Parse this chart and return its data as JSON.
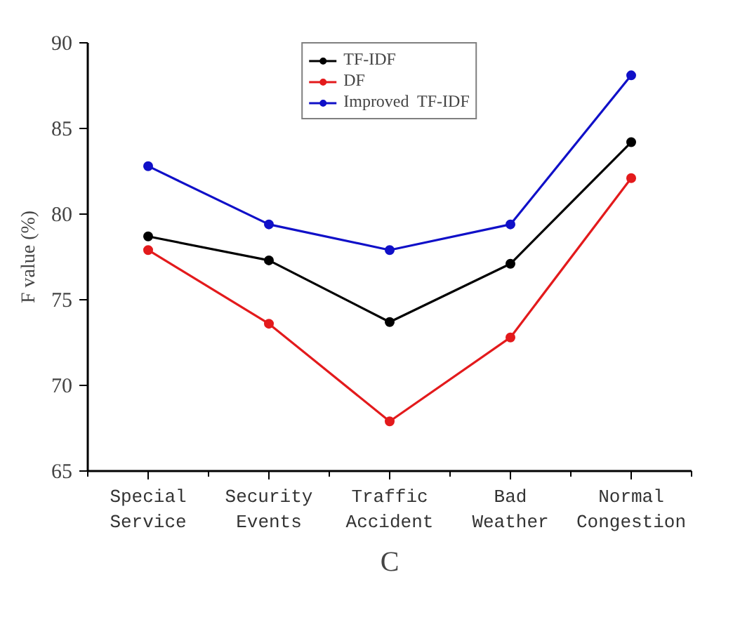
{
  "chart_data": {
    "type": "line",
    "ylabel": "F value (%)",
    "annotations": [
      "C"
    ],
    "categories": [
      "Special\nService",
      "Security\nEvents",
      "Traffic\nAccident",
      "Bad\nWeather",
      "Normal\nCongestion"
    ],
    "series": [
      {
        "name": "TF-IDF",
        "color": "#000000",
        "values": [
          78.7,
          77.3,
          73.7,
          77.1,
          84.2
        ]
      },
      {
        "name": "DF",
        "color": "#e31a1c",
        "values": [
          77.9,
          73.6,
          67.9,
          72.8,
          82.1
        ]
      },
      {
        "name": "Improved  TF-IDF",
        "color": "#1010c8",
        "values": [
          82.8,
          79.4,
          77.9,
          79.4,
          88.1
        ]
      }
    ],
    "ylim": [
      65,
      90
    ],
    "yticks": [
      65,
      70,
      75,
      80,
      85,
      90
    ],
    "grid": false,
    "legend": "top",
    "marker": "circle",
    "line_style": "solid"
  }
}
